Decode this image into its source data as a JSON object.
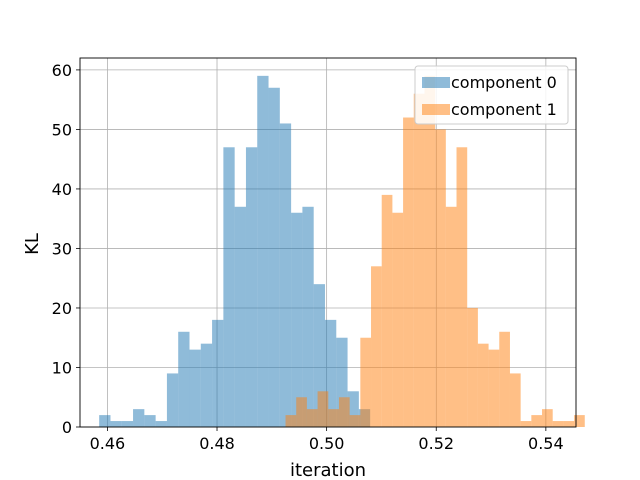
{
  "chart_data": {
    "type": "bar",
    "subtype": "overlapping-histogram",
    "title": "",
    "xlabel": "iteration",
    "ylabel": "KL",
    "xlim": [
      0.455,
      0.5455
    ],
    "ylim": [
      0,
      62
    ],
    "xticks": [
      0.46,
      0.48,
      0.5,
      0.52,
      0.54
    ],
    "xtick_labels": [
      "0.46",
      "0.48",
      "0.50",
      "0.52",
      "0.54"
    ],
    "yticks": [
      0,
      10,
      20,
      30,
      40,
      50,
      60
    ],
    "ytick_labels": [
      "0",
      "10",
      "20",
      "30",
      "40",
      "50",
      "60"
    ],
    "grid": true,
    "legend_position": "upper right",
    "series": [
      {
        "name": "component 0",
        "color": "#1f77b4",
        "alpha": 0.5,
        "bin_start": 0.4585,
        "bin_width": 0.00206,
        "counts": [
          2,
          1,
          1,
          3,
          2,
          1,
          9,
          16,
          13,
          14,
          18,
          47,
          37,
          47,
          59,
          57,
          51,
          36,
          37,
          24,
          18,
          15,
          6,
          3
        ]
      },
      {
        "name": "component 1",
        "color": "#ff7f0e",
        "alpha": 0.5,
        "bin_start": 0.4925,
        "bin_width": 0.00195,
        "counts": [
          2,
          5,
          3,
          6,
          3,
          5,
          2,
          15,
          27,
          39,
          36,
          52,
          56,
          59,
          50,
          37,
          47,
          20,
          14,
          13,
          16,
          9,
          1,
          2,
          3,
          1,
          1,
          2
        ]
      }
    ]
  }
}
